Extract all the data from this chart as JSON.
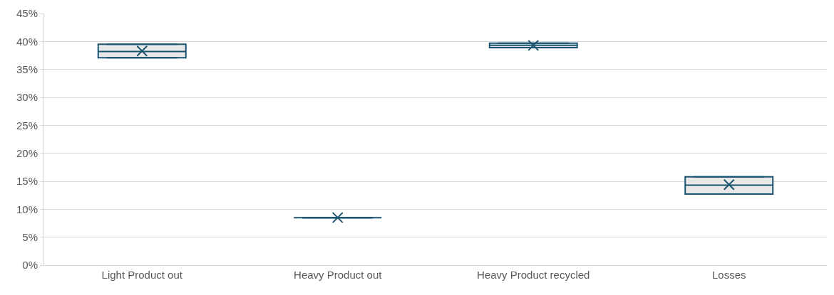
{
  "chart_data": {
    "type": "box",
    "categories": [
      "Light Product out",
      "Heavy Product out",
      "Heavy Product recycled",
      "Losses"
    ],
    "color": "#1b5470",
    "boxes": [
      {
        "low": 37.1,
        "q1": 37.1,
        "median": 38.2,
        "q3": 39.5,
        "high": 39.5,
        "mean": 38.3
      },
      {
        "low": 8.5,
        "q1": 8.5,
        "median": 8.5,
        "q3": 8.5,
        "high": 8.5,
        "mean": 8.5
      },
      {
        "low": 38.9,
        "q1": 38.9,
        "median": 39.3,
        "q3": 39.7,
        "high": 39.7,
        "mean": 39.3
      },
      {
        "low": 12.7,
        "q1": 12.7,
        "median": 14.3,
        "q3": 15.8,
        "high": 15.8,
        "mean": 14.4
      }
    ],
    "ylim": [
      0,
      45
    ],
    "yticks": [
      {
        "value": 0,
        "label": "0%"
      },
      {
        "value": 5,
        "label": "5%"
      },
      {
        "value": 10,
        "label": "10%"
      },
      {
        "value": 15,
        "label": "15%"
      },
      {
        "value": 20,
        "label": "20%"
      },
      {
        "value": 25,
        "label": "25%"
      },
      {
        "value": 30,
        "label": "30%"
      },
      {
        "value": 35,
        "label": "35%"
      },
      {
        "value": 40,
        "label": "40%"
      },
      {
        "value": 45,
        "label": "45%"
      }
    ],
    "grid": "y"
  }
}
